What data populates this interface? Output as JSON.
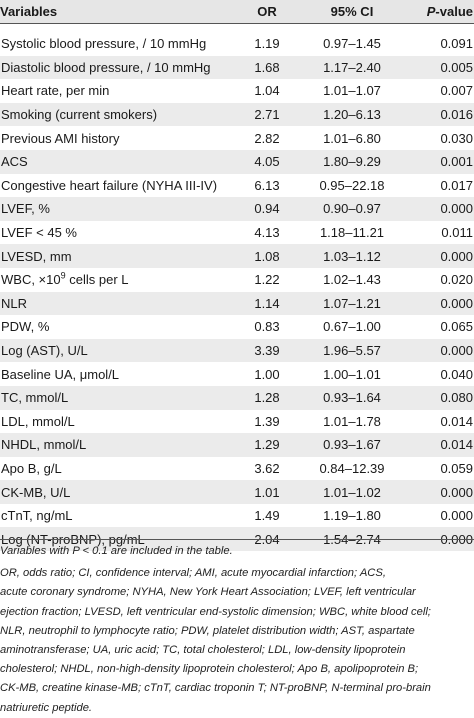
{
  "table": {
    "headers": {
      "variables": "Variables",
      "or": "OR",
      "ci": "95% CI",
      "p_prefix": "P",
      "p_suffix": "-value"
    },
    "rows": [
      {
        "variable": "Systolic blood pressure, / 10 mmHg",
        "or": "1.19",
        "ci": "0.97–1.45",
        "p": "0.091"
      },
      {
        "variable": "Diastolic blood pressure, / 10 mmHg",
        "or": "1.68",
        "ci": "1.17–2.40",
        "p": "0.005"
      },
      {
        "variable": "Heart rate, per min",
        "or": "1.04",
        "ci": "1.01–1.07",
        "p": "0.007"
      },
      {
        "variable": "Smoking (current smokers)",
        "or": "2.71",
        "ci": "1.20–6.13",
        "p": "0.016"
      },
      {
        "variable": "Previous AMI history",
        "or": "2.82",
        "ci": "1.01–6.80",
        "p": "0.030"
      },
      {
        "variable": "ACS",
        "or": "4.05",
        "ci": "1.80–9.29",
        "p": "0.001"
      },
      {
        "variable": "Congestive heart failure (NYHA III-IV)",
        "or": "6.13",
        "ci": "0.95–22.18",
        "p": "0.017"
      },
      {
        "variable": "LVEF, %",
        "or": "0.94",
        "ci": "0.90–0.97",
        "p": "0.000"
      },
      {
        "variable": "LVEF < 45 %",
        "or": "4.13",
        "ci": "1.18–11.21",
        "p": "0.011"
      },
      {
        "variable": "LVESD, mm",
        "or": "1.08",
        "ci": "1.03–1.12",
        "p": "0.000"
      },
      {
        "variable_prefix": "WBC, ×10",
        "variable_sup": "9",
        "variable_suffix": " cells per L",
        "or": "1.22",
        "ci": "1.02–1.43",
        "p": "0.020"
      },
      {
        "variable": "NLR",
        "or": "1.14",
        "ci": "1.07–1.21",
        "p": "0.000"
      },
      {
        "variable": "PDW, %",
        "or": "0.83",
        "ci": "0.67–1.00",
        "p": "0.065"
      },
      {
        "variable": "Log (AST), U/L",
        "or": "3.39",
        "ci": "1.96–5.57",
        "p": "0.000"
      },
      {
        "variable": "Baseline UA, μmol/L",
        "or": "1.00",
        "ci": "1.00–1.01",
        "p": "0.040"
      },
      {
        "variable": "TC, mmol/L",
        "or": "1.28",
        "ci": "0.93–1.64",
        "p": "0.080"
      },
      {
        "variable": "LDL, mmol/L",
        "or": "1.39",
        "ci": "1.01–1.78",
        "p": "0.014"
      },
      {
        "variable": "NHDL, mmol/L",
        "or": "1.29",
        "ci": "0.93–1.67",
        "p": "0.014"
      },
      {
        "variable": "Apo B, g/L",
        "or": "3.62",
        "ci": "0.84–12.39",
        "p": "0.059"
      },
      {
        "variable": "CK-MB, U/L",
        "or": "1.01",
        "ci": "1.01–1.02",
        "p": "0.000"
      },
      {
        "variable": "cTnT, ng/mL",
        "or": "1.49",
        "ci": "1.19–1.80",
        "p": "0.000"
      },
      {
        "variable": "Log (NT-proBNP), pg/mL",
        "or": "2.04",
        "ci": "1.54–2.74",
        "p": "0.000"
      }
    ]
  },
  "footnotes": {
    "note1": "Variables with P < 0.1 are included in the table.",
    "abbr_lines": [
      "OR, odds ratio; CI, confidence interval; AMI, acute myocardial infarction; ACS,",
      "acute coronary syndrome; NYHA, New York Heart Association; LVEF, left ventricular",
      "ejection fraction; LVESD, left ventricular end-systolic dimension; WBC, white blood cell;",
      "NLR, neutrophil to lymphocyte ratio; PDW, platelet distribution width; AST, aspartate",
      "aminotransferase; UA, uric acid; TC, total cholesterol; LDL, low-density lipoprotein",
      "cholesterol; NHDL, non-high-density lipoprotein cholesterol; Apo B, apolipoprotein B;",
      "CK-MB, creatine kinase-MB; cTnT, cardiac troponin T; NT-proBNP, N-terminal pro-brain",
      "natriuretic peptide."
    ]
  }
}
